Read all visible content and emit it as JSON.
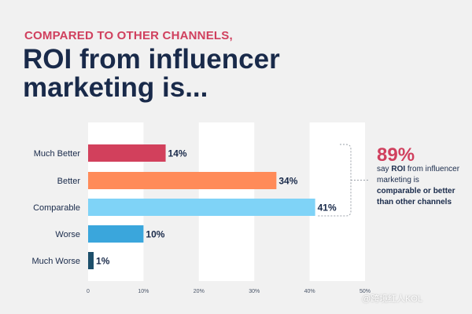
{
  "header": {
    "kicker": "COMPARED TO OTHER CHANNELS,",
    "title": "ROI from influencer marketing is..."
  },
  "callout": {
    "percent": "89%",
    "text_1": "say ",
    "text_2": "ROI",
    "text_3": " from influencer marketing is ",
    "text_4": "comparable or better than other channels"
  },
  "watermark": "@跨境红人KOL",
  "chart_data": {
    "type": "bar",
    "orientation": "horizontal",
    "categories": [
      "Much Better",
      "Better",
      "Comparable",
      "Worse",
      "Much Worse"
    ],
    "values": [
      14,
      34,
      41,
      10,
      1
    ],
    "value_labels": [
      "14%",
      "34%",
      "41%",
      "10%",
      "1%"
    ],
    "colors": [
      "#d2405c",
      "#ff8b59",
      "#7fd3f7",
      "#3aa6dc",
      "#1d4f6b"
    ],
    "xlim": [
      0,
      50
    ],
    "xticks": [
      0,
      10,
      20,
      30,
      40,
      50
    ],
    "xtick_labels": [
      "0",
      "10%",
      "20%",
      "30%",
      "40%",
      "50%"
    ],
    "grid": "alternating vertical bands"
  }
}
